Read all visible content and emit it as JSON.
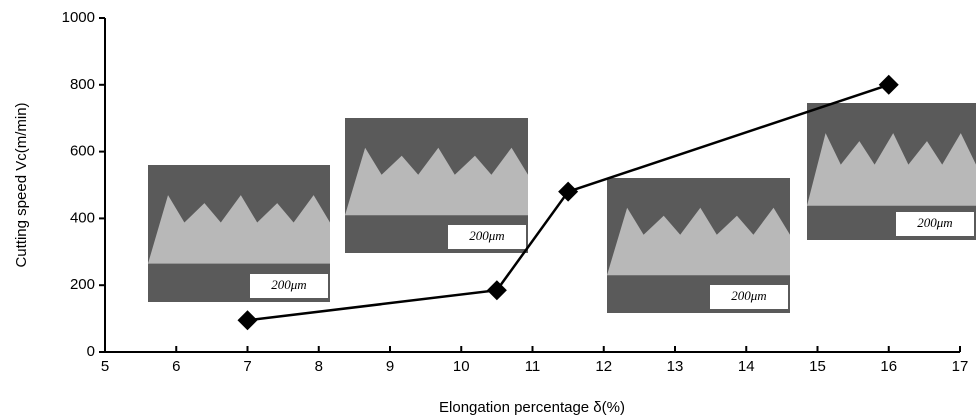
{
  "chart_data": {
    "type": "line",
    "x": [
      7,
      10.5,
      11.5,
      16
    ],
    "values": [
      95,
      185,
      480,
      800
    ],
    "color": "#000000",
    "xlim": [
      5,
      17
    ],
    "xticks": [
      5,
      6,
      7,
      8,
      9,
      10,
      11,
      12,
      13,
      14,
      15,
      16,
      17
    ],
    "ylim": [
      0,
      1000
    ],
    "yticks": [
      0,
      200,
      400,
      600,
      800,
      1000
    ],
    "xlabel": "Elongation percentage  δ(%)",
    "ylabel": "Cutting speed  Vc(m/min)",
    "annotations": [
      "200μm",
      "200μm",
      "200μm",
      "200μm"
    ]
  }
}
